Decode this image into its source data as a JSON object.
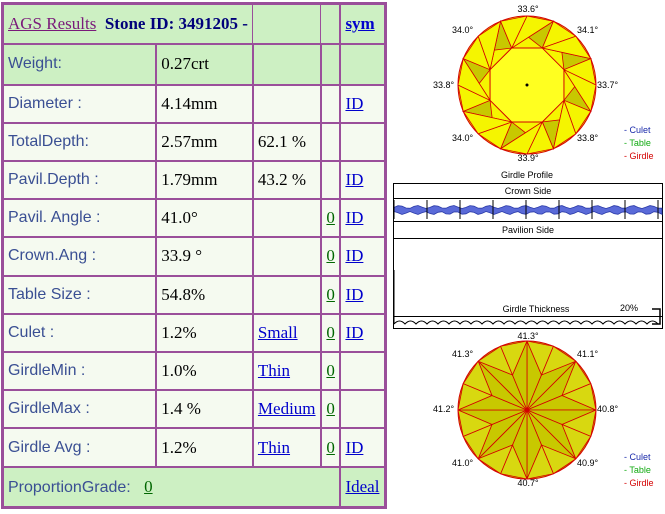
{
  "header": {
    "title": "AGS Results",
    "stone_label": "Stone ID:",
    "stone_id": "3491205 -",
    "sym": "sym"
  },
  "rows": [
    {
      "label": "Weight:",
      "value": "0.27crt",
      "extra": "",
      "grade": "",
      "link": ""
    },
    {
      "label": "Diameter :",
      "value": "4.14mm",
      "extra": "",
      "grade": "",
      "link": "ID"
    },
    {
      "label": "TotalDepth:",
      "value": "2.57mm",
      "extra": "62.1 %",
      "grade": "",
      "link": ""
    },
    {
      "label": "Pavil.Depth :",
      "value": "1.79mm",
      "extra": "43.2 %",
      "grade": "",
      "link": "ID"
    },
    {
      "label": "Pavil. Angle :",
      "value": "41.0°",
      "extra": "",
      "grade": "0",
      "link": "ID"
    },
    {
      "label": "Crown.Ang :",
      "value": "33.9 °",
      "extra": "",
      "grade": "0",
      "link": "ID"
    },
    {
      "label": "Table Size :",
      "value": "54.8%",
      "extra": "",
      "grade": "0",
      "link": "ID"
    },
    {
      "label": "Culet :",
      "value": "1.2%",
      "extra": "Small",
      "grade": "0",
      "link": "ID"
    },
    {
      "label": "GirdleMin :",
      "value": "1.0%",
      "extra": "Thin",
      "grade": "0",
      "link": ""
    },
    {
      "label": "GirdleMax :",
      "value": "1.4 %",
      "extra": "Medium",
      "grade": "0",
      "link": ""
    },
    {
      "label": "Girdle Avg :",
      "value": "1.2%",
      "extra": "Thin",
      "grade": "0",
      "link": "ID"
    }
  ],
  "proportion": {
    "label": "ProportionGrade:",
    "grade": "0",
    "result": "Ideal"
  },
  "crown_view": {
    "angles": {
      "top": "33.6°",
      "top_left": "34.0°",
      "top_right": "34.1°",
      "left": "33.8°",
      "right": "33.7°",
      "bottom_left": "34.0°",
      "bottom_right": "33.8°",
      "bottom": "33.9°"
    },
    "caption": "Girdle Profile"
  },
  "legend": {
    "culet": "- Culet",
    "table": "- Table",
    "girdle": "- Girdle"
  },
  "profile": {
    "crown_side": "Crown Side",
    "pavilion_side": "Pavilion Side",
    "thickness": "Girdle Thickness",
    "percent": "20%"
  },
  "pavilion_view": {
    "angles": {
      "top": "41.3°",
      "top_left": "41.3°",
      "top_right": "41.1°",
      "left": "41.2°",
      "right": "40.8°",
      "bottom_left": "41.0°",
      "bottom_right": "40.9°",
      "bottom": "40.7°"
    }
  },
  "colors": {
    "border": "#9a4f9a",
    "header_bg": "#cdf0c3",
    "label_text": "#3a4f93",
    "facet_yellow": "#f5f500",
    "facet_olive": "#c8c800",
    "facet_line": "#d40000",
    "girdle_blue": "#5a6ad8"
  }
}
